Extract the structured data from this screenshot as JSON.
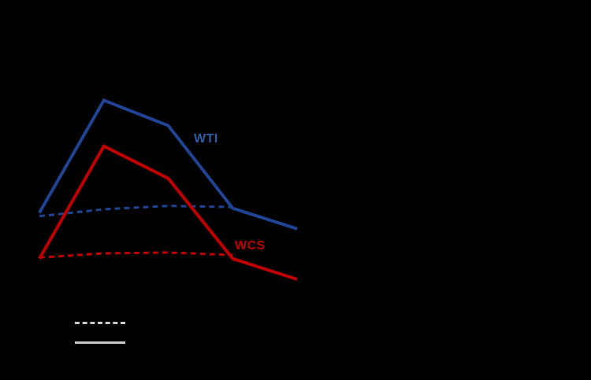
{
  "colors": {
    "background": "#000000",
    "wti_blue": "#1f4494",
    "wcs_red": "#c00000",
    "wti_label_blue": "#2e5fa8",
    "wcs_label_red": "#c00000",
    "legend_gray": "#c9c9c9"
  },
  "chart_data": {
    "type": "line",
    "title": "",
    "xlabel": "",
    "ylabel": "",
    "grid": false,
    "x": [
      0,
      1,
      2,
      3,
      4
    ],
    "xlim": [
      0,
      4.6
    ],
    "ylim": [
      0,
      120
    ],
    "series": [
      {
        "name": "WTI dashed",
        "line": "dashed",
        "color": "#1f4494",
        "x": [
          0,
          1,
          2,
          3
        ],
        "values": [
          39.5,
          42.5,
          44,
          43.5
        ]
      },
      {
        "name": "WCS dashed",
        "line": "dashed",
        "color": "#c00000",
        "x": [
          0,
          1,
          2,
          3
        ],
        "values": [
          21.5,
          23.3,
          23.7,
          22.6
        ]
      },
      {
        "name": "WTI solid",
        "line": "solid",
        "color": "#1f4494",
        "x": [
          0,
          1,
          2,
          3,
          4
        ],
        "values": [
          41,
          90,
          79,
          43,
          34
        ]
      },
      {
        "name": "WCS solid",
        "line": "solid",
        "color": "#c00000",
        "x": [
          0,
          1,
          2,
          3,
          4
        ],
        "values": [
          21,
          70,
          56,
          21,
          12
        ]
      }
    ],
    "annotations": [
      {
        "text": "WTI",
        "color": "#2e5fa8"
      },
      {
        "text": "WCS",
        "color": "#c00000"
      }
    ],
    "legend": {
      "position": "bottom-left",
      "items": [
        {
          "line": "dashed",
          "color": "#c9c9c9",
          "label": ""
        },
        {
          "line": "solid",
          "color": "#c9c9c9",
          "label": ""
        }
      ]
    }
  }
}
